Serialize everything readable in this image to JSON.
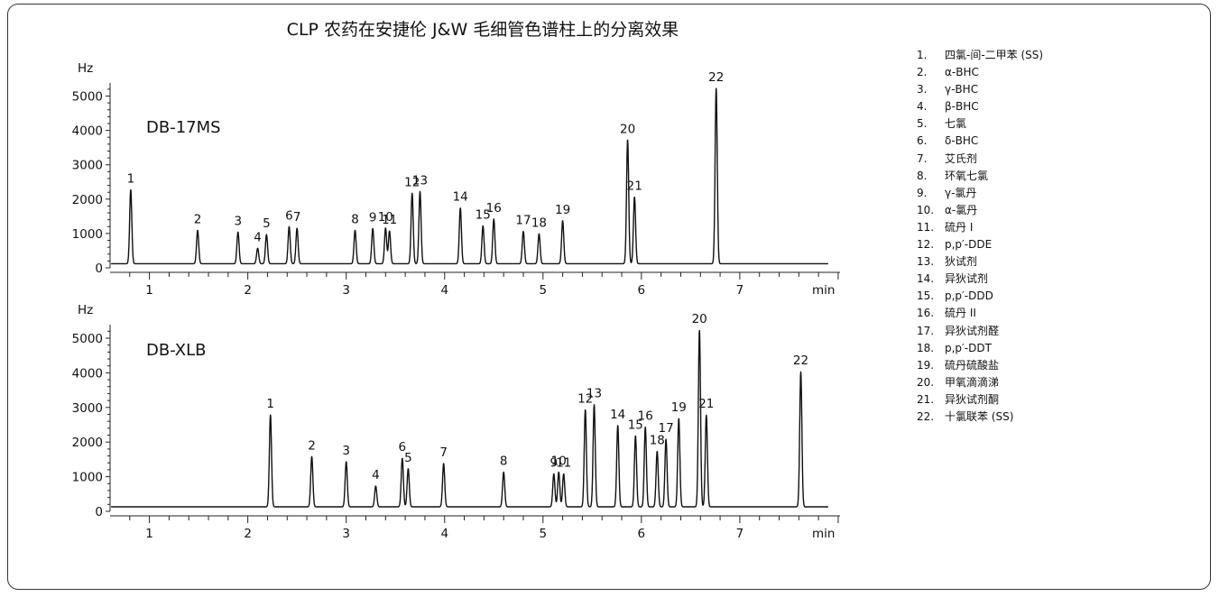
{
  "title": "CLP 农药在安捷伦 J&W 毛细管色谱柱上的分离效果",
  "legend": [
    {
      "num": "1.",
      "name": "四氯-间-二甲苯 (SS)"
    },
    {
      "num": "2.",
      "name": "α-BHC"
    },
    {
      "num": "3.",
      "name": "γ-BHC"
    },
    {
      "num": "4.",
      "name": "β-BHC"
    },
    {
      "num": "5.",
      "name": "七氯"
    },
    {
      "num": "6.",
      "name": "δ-BHC"
    },
    {
      "num": "7.",
      "name": "艾氏剂"
    },
    {
      "num": "8.",
      "name": "环氧七氯"
    },
    {
      "num": "9.",
      "name": "γ-氯丹"
    },
    {
      "num": "10.",
      "name": "α-氯丹"
    },
    {
      "num": "11.",
      "name": "硫丹 I"
    },
    {
      "num": "12.",
      "name": "p,p′-DDE"
    },
    {
      "num": "13.",
      "name": "狄试剂"
    },
    {
      "num": "14.",
      "name": "异狄试剂"
    },
    {
      "num": "15.",
      "name": "p,p′-DDD"
    },
    {
      "num": "16.",
      "name": "硫丹 II"
    },
    {
      "num": "17.",
      "name": "异狄试剂醛"
    },
    {
      "num": "18.",
      "name": "p,p′-DDT"
    },
    {
      "num": "19.",
      "name": "硫丹硫酸盐"
    },
    {
      "num": "20.",
      "name": "甲氧滴滴涕"
    },
    {
      "num": "21.",
      "name": "异狄试剂酮"
    },
    {
      "num": "22.",
      "name": "十氯联苯 (SS)"
    }
  ],
  "chart_data": [
    {
      "type": "line",
      "column": "DB-17MS",
      "ylabel": "Hz",
      "xlabel": "min",
      "xlim": [
        0.55,
        7.6
      ],
      "ylim": [
        0,
        5300
      ],
      "x_ticks": [
        1,
        2,
        3,
        4,
        5,
        6,
        7
      ],
      "y_ticks": [
        0,
        1000,
        2000,
        3000,
        4000,
        5000
      ],
      "baseline": 120,
      "peaks": [
        {
          "label": "1",
          "rt": 0.81,
          "height": 2150
        },
        {
          "label": "2",
          "rt": 1.49,
          "height": 970
        },
        {
          "label": "3",
          "rt": 1.9,
          "height": 920
        },
        {
          "label": "4",
          "rt": 2.1,
          "height": 450
        },
        {
          "label": "5",
          "rt": 2.19,
          "height": 850
        },
        {
          "label": "6",
          "rt": 2.42,
          "height": 1080
        },
        {
          "label": "7",
          "rt": 2.5,
          "height": 1030
        },
        {
          "label": "8",
          "rt": 3.09,
          "height": 970
        },
        {
          "label": "9",
          "rt": 3.27,
          "height": 1020
        },
        {
          "label": "10",
          "rt": 3.4,
          "height": 1040
        },
        {
          "label": "11",
          "rt": 3.44,
          "height": 950
        },
        {
          "label": "12",
          "rt": 3.67,
          "height": 2050
        },
        {
          "label": "13",
          "rt": 3.75,
          "height": 2100
        },
        {
          "label": "14",
          "rt": 4.16,
          "height": 1620
        },
        {
          "label": "15",
          "rt": 4.39,
          "height": 1100
        },
        {
          "label": "16",
          "rt": 4.5,
          "height": 1300
        },
        {
          "label": "17",
          "rt": 4.8,
          "height": 940
        },
        {
          "label": "18",
          "rt": 4.96,
          "height": 870
        },
        {
          "label": "19",
          "rt": 5.2,
          "height": 1250
        },
        {
          "label": "20",
          "rt": 5.86,
          "height": 3600
        },
        {
          "label": "21",
          "rt": 5.93,
          "height": 1940
        },
        {
          "label": "22",
          "rt": 6.76,
          "height": 5100
        }
      ]
    },
    {
      "type": "line",
      "column": "DB-XLB",
      "ylabel": "Hz",
      "xlabel": "min",
      "xlim": [
        0.55,
        7.6
      ],
      "ylim": [
        0,
        5300
      ],
      "x_ticks": [
        1,
        2,
        3,
        4,
        5,
        6,
        7
      ],
      "y_ticks": [
        0,
        1000,
        2000,
        3000,
        4000,
        5000
      ],
      "baseline": 130,
      "peaks": [
        {
          "label": "1",
          "rt": 2.23,
          "height": 2650
        },
        {
          "label": "2",
          "rt": 2.65,
          "height": 1450
        },
        {
          "label": "3",
          "rt": 3.0,
          "height": 1300
        },
        {
          "label": "4",
          "rt": 3.3,
          "height": 600
        },
        {
          "label": "5",
          "rt": 3.63,
          "height": 1100
        },
        {
          "label": "6",
          "rt": 3.57,
          "height": 1400
        },
        {
          "label": "7",
          "rt": 3.99,
          "height": 1250
        },
        {
          "label": "8",
          "rt": 4.6,
          "height": 1000
        },
        {
          "label": "9",
          "rt": 5.11,
          "height": 950
        },
        {
          "label": "10",
          "rt": 5.16,
          "height": 1000
        },
        {
          "label": "11",
          "rt": 5.21,
          "height": 950
        },
        {
          "label": "12",
          "rt": 5.43,
          "height": 2800
        },
        {
          "label": "13",
          "rt": 5.52,
          "height": 2950
        },
        {
          "label": "14",
          "rt": 5.76,
          "height": 2350
        },
        {
          "label": "15",
          "rt": 5.94,
          "height": 2050
        },
        {
          "label": "16",
          "rt": 6.04,
          "height": 2300
        },
        {
          "label": "17",
          "rt": 6.25,
          "height": 1950
        },
        {
          "label": "18",
          "rt": 6.16,
          "height": 1600
        },
        {
          "label": "19",
          "rt": 6.38,
          "height": 2550
        },
        {
          "label": "20",
          "rt": 6.59,
          "height": 5100
        },
        {
          "label": "21",
          "rt": 6.66,
          "height": 2650
        },
        {
          "label": "22",
          "rt": 7.62,
          "height": 3900
        }
      ]
    }
  ]
}
